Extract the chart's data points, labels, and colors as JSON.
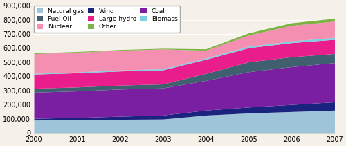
{
  "years": [
    2000,
    2001,
    2002,
    2003,
    2004,
    2005,
    2006,
    2007
  ],
  "series": {
    "Natural gas": {
      "values": [
        90000,
        92000,
        95000,
        97000,
        125000,
        140000,
        150000,
        160000
      ],
      "color": "#9dc4d8"
    },
    "Wind": {
      "values": [
        12000,
        16000,
        22000,
        28000,
        35000,
        42000,
        50000,
        58000
      ],
      "color": "#1a237e"
    },
    "Coal": {
      "values": [
        185000,
        188000,
        192000,
        192000,
        210000,
        250000,
        268000,
        278000
      ],
      "color": "#7b1fa2"
    },
    "Fuel Oil": {
      "values": [
        28000,
        28000,
        28000,
        28000,
        50000,
        70000,
        70000,
        65000
      ],
      "color": "#406070"
    },
    "Large hydro": {
      "values": [
        100000,
        100000,
        100000,
        100000,
        100000,
        100000,
        100000,
        100000
      ],
      "color": "#e91e8c"
    },
    "Biomass": {
      "values": [
        5000,
        6000,
        7000,
        8000,
        9000,
        10000,
        12000,
        14000
      ],
      "color": "#7ecfe0"
    },
    "Nuclear": {
      "values": [
        140000,
        140000,
        140000,
        140000,
        55000,
        80000,
        110000,
        115000
      ],
      "color": "#f48fb1"
    },
    "Other": {
      "values": [
        5000,
        5000,
        5000,
        5000,
        10000,
        15000,
        18000,
        20000
      ],
      "color": "#7cb342"
    }
  },
  "ylim": [
    0,
    900000
  ],
  "yticks": [
    0,
    100000,
    200000,
    300000,
    400000,
    500000,
    600000,
    700000,
    800000,
    900000
  ],
  "background_color": "#f5f0e8",
  "stack_order": [
    "Natural gas",
    "Wind",
    "Coal",
    "Fuel Oil",
    "Large hydro",
    "Biomass",
    "Nuclear",
    "Other"
  ],
  "legend_order": [
    "Natural gas",
    "Fuel Oil",
    "Nuclear",
    "Wind",
    "Large hydro",
    "Other",
    "Coal",
    "Biomass"
  ]
}
